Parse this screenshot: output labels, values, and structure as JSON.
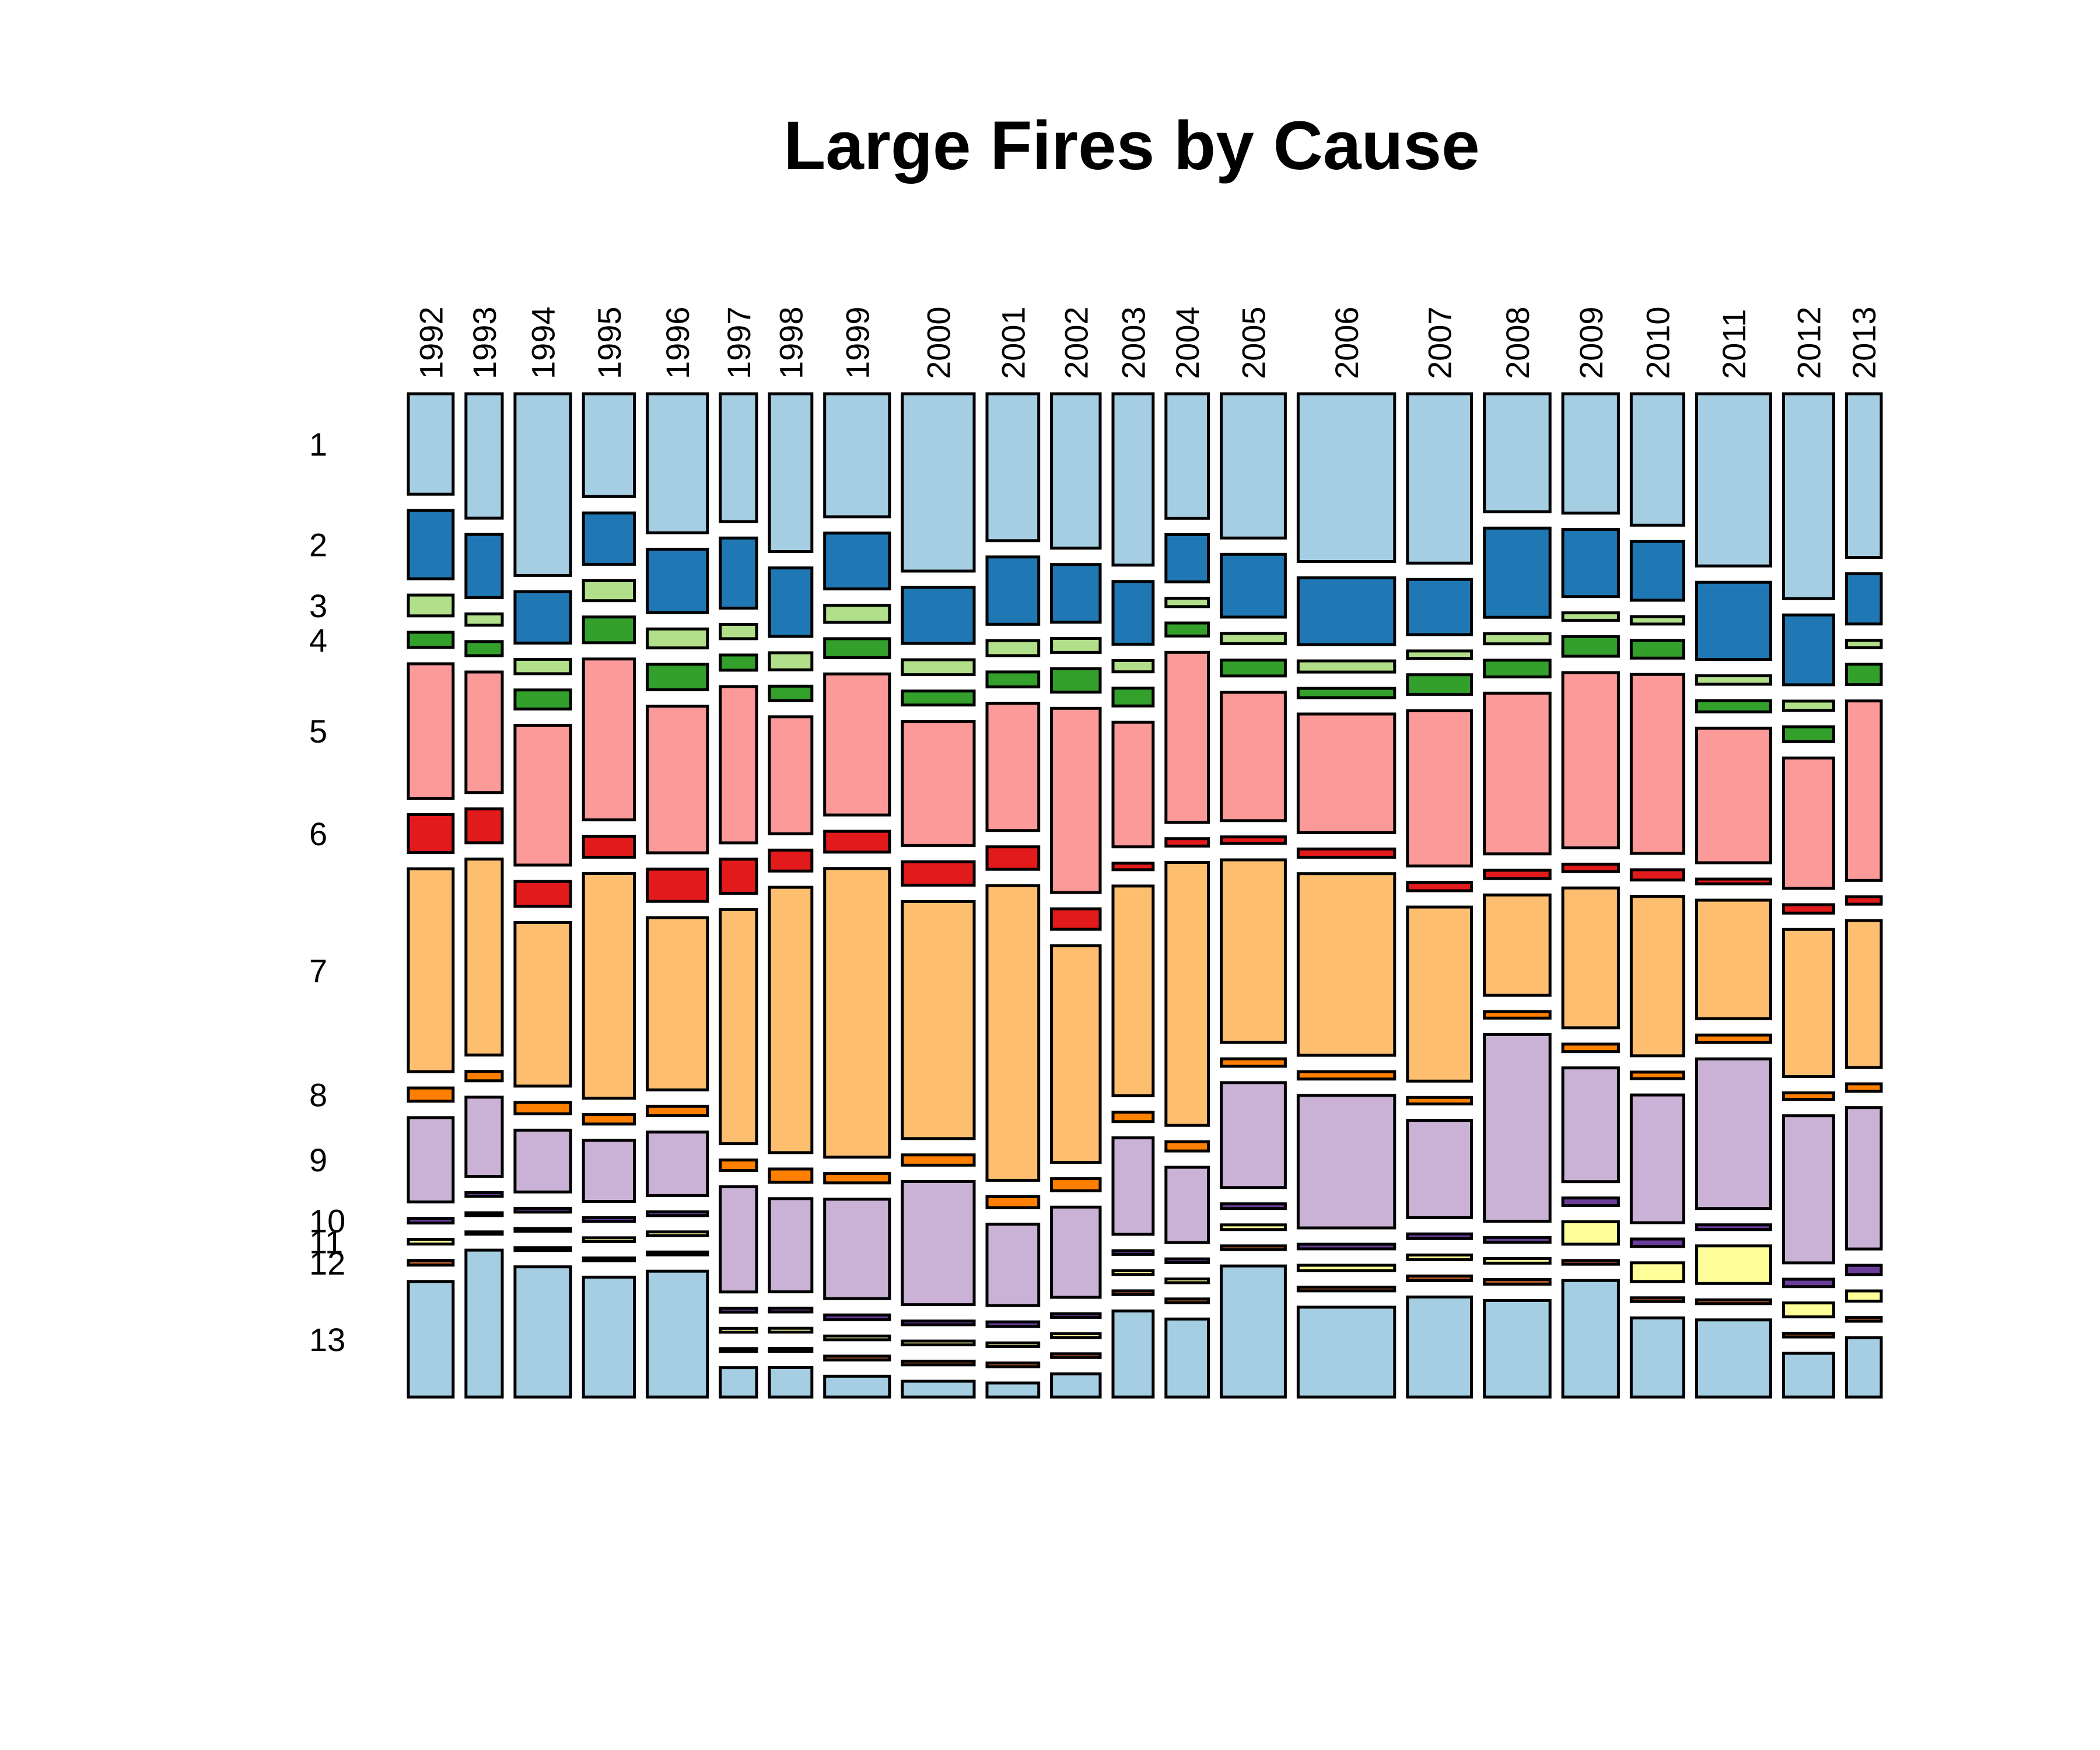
{
  "chart_data": {
    "type": "mosaic",
    "title": "Large Fires by Cause",
    "xlabel": "",
    "ylabel": "",
    "categories": [
      "1992",
      "1993",
      "1994",
      "1995",
      "1996",
      "1997",
      "1998",
      "1999",
      "2000",
      "2001",
      "2002",
      "2003",
      "2004",
      "2005",
      "2006",
      "2007",
      "2008",
      "2009",
      "2010",
      "2011",
      "2012",
      "2013"
    ],
    "row_labels": [
      "1",
      "2",
      "3",
      "4",
      "5",
      "6",
      "7",
      "8",
      "9",
      "10",
      "11",
      "12",
      "13"
    ],
    "colors": [
      "#a6cee3",
      "#1f78b4",
      "#b2df8a",
      "#33a02c",
      "#fb9a99",
      "#e31a1c",
      "#fdbf6f",
      "#ff7f00",
      "#cab2d6",
      "#6a3d9a",
      "#ffff99",
      "#b15928",
      "#a6cee3"
    ],
    "column_weights": [
      58,
      47,
      72,
      66,
      78,
      47,
      55,
      84,
      93,
      67,
      63,
      52,
      55,
      83,
      125,
      83,
      85,
      72,
      68,
      96,
      65,
      45
    ],
    "proportions": [
      [
        0.106,
        0.072,
        0.022,
        0.016,
        0.142,
        0.04,
        0.214,
        0.014,
        0.089,
        0.005,
        0.005,
        0.005,
        0.122
      ],
      [
        0.132,
        0.067,
        0.012,
        0.015,
        0.128,
        0.036,
        0.208,
        0.01,
        0.084,
        0.004,
        0.003,
        0.002,
        0.156
      ],
      [
        0.191,
        0.054,
        0.015,
        0.02,
        0.147,
        0.026,
        0.172,
        0.012,
        0.065,
        0.004,
        0.003,
        0.003,
        0.137
      ],
      [
        0.108,
        0.054,
        0.021,
        0.027,
        0.169,
        0.022,
        0.236,
        0.01,
        0.064,
        0.004,
        0.004,
        0.003,
        0.126
      ],
      [
        0.147,
        0.067,
        0.02,
        0.027,
        0.155,
        0.034,
        0.182,
        0.01,
        0.067,
        0.004,
        0.004,
        0.003,
        0.133
      ],
      [
        0.135,
        0.074,
        0.015,
        0.016,
        0.165,
        0.036,
        0.247,
        0.011,
        0.111,
        0.004,
        0.004,
        0.003,
        0.031
      ],
      [
        0.166,
        0.072,
        0.018,
        0.015,
        0.123,
        0.022,
        0.279,
        0.014,
        0.098,
        0.004,
        0.004,
        0.003,
        0.031
      ],
      [
        0.13,
        0.059,
        0.018,
        0.02,
        0.149,
        0.022,
        0.305,
        0.01,
        0.105,
        0.005,
        0.004,
        0.004,
        0.022
      ],
      [
        0.19,
        0.06,
        0.016,
        0.015,
        0.133,
        0.025,
        0.254,
        0.011,
        0.132,
        0.004,
        0.004,
        0.004,
        0.017
      ],
      [
        0.157,
        0.072,
        0.016,
        0.016,
        0.136,
        0.024,
        0.315,
        0.012,
        0.087,
        0.005,
        0.004,
        0.004,
        0.015
      ],
      [
        0.166,
        0.062,
        0.015,
        0.025,
        0.198,
        0.022,
        0.233,
        0.013,
        0.097,
        0.004,
        0.004,
        0.004,
        0.025
      ],
      [
        0.183,
        0.067,
        0.012,
        0.019,
        0.133,
        0.007,
        0.224,
        0.01,
        0.103,
        0.004,
        0.004,
        0.004,
        0.092
      ],
      [
        0.134,
        0.051,
        0.009,
        0.014,
        0.183,
        0.008,
        0.283,
        0.01,
        0.081,
        0.004,
        0.004,
        0.004,
        0.084
      ],
      [
        0.154,
        0.067,
        0.011,
        0.017,
        0.137,
        0.007,
        0.195,
        0.008,
        0.112,
        0.005,
        0.005,
        0.004,
        0.14
      ],
      [
        0.181,
        0.072,
        0.012,
        0.01,
        0.128,
        0.009,
        0.196,
        0.008,
        0.143,
        0.005,
        0.006,
        0.004,
        0.097
      ],
      [
        0.181,
        0.059,
        0.008,
        0.021,
        0.166,
        0.009,
        0.186,
        0.007,
        0.104,
        0.005,
        0.005,
        0.005,
        0.107
      ],
      [
        0.127,
        0.096,
        0.011,
        0.018,
        0.173,
        0.009,
        0.108,
        0.007,
        0.201,
        0.005,
        0.005,
        0.005,
        0.104
      ],
      [
        0.128,
        0.072,
        0.008,
        0.021,
        0.188,
        0.008,
        0.15,
        0.008,
        0.122,
        0.008,
        0.024,
        0.004,
        0.125
      ],
      [
        0.141,
        0.063,
        0.008,
        0.019,
        0.192,
        0.011,
        0.171,
        0.007,
        0.137,
        0.008,
        0.02,
        0.004,
        0.085
      ],
      [
        0.183,
        0.082,
        0.009,
        0.012,
        0.143,
        0.005,
        0.126,
        0.008,
        0.159,
        0.005,
        0.04,
        0.004,
        0.082
      ],
      [
        0.22,
        0.075,
        0.01,
        0.016,
        0.14,
        0.009,
        0.158,
        0.007,
        0.158,
        0.008,
        0.015,
        0.004,
        0.047
      ],
      [
        0.176,
        0.054,
        0.008,
        0.022,
        0.193,
        0.008,
        0.158,
        0.008,
        0.152,
        0.01,
        0.011,
        0.004,
        0.064
      ]
    ]
  }
}
